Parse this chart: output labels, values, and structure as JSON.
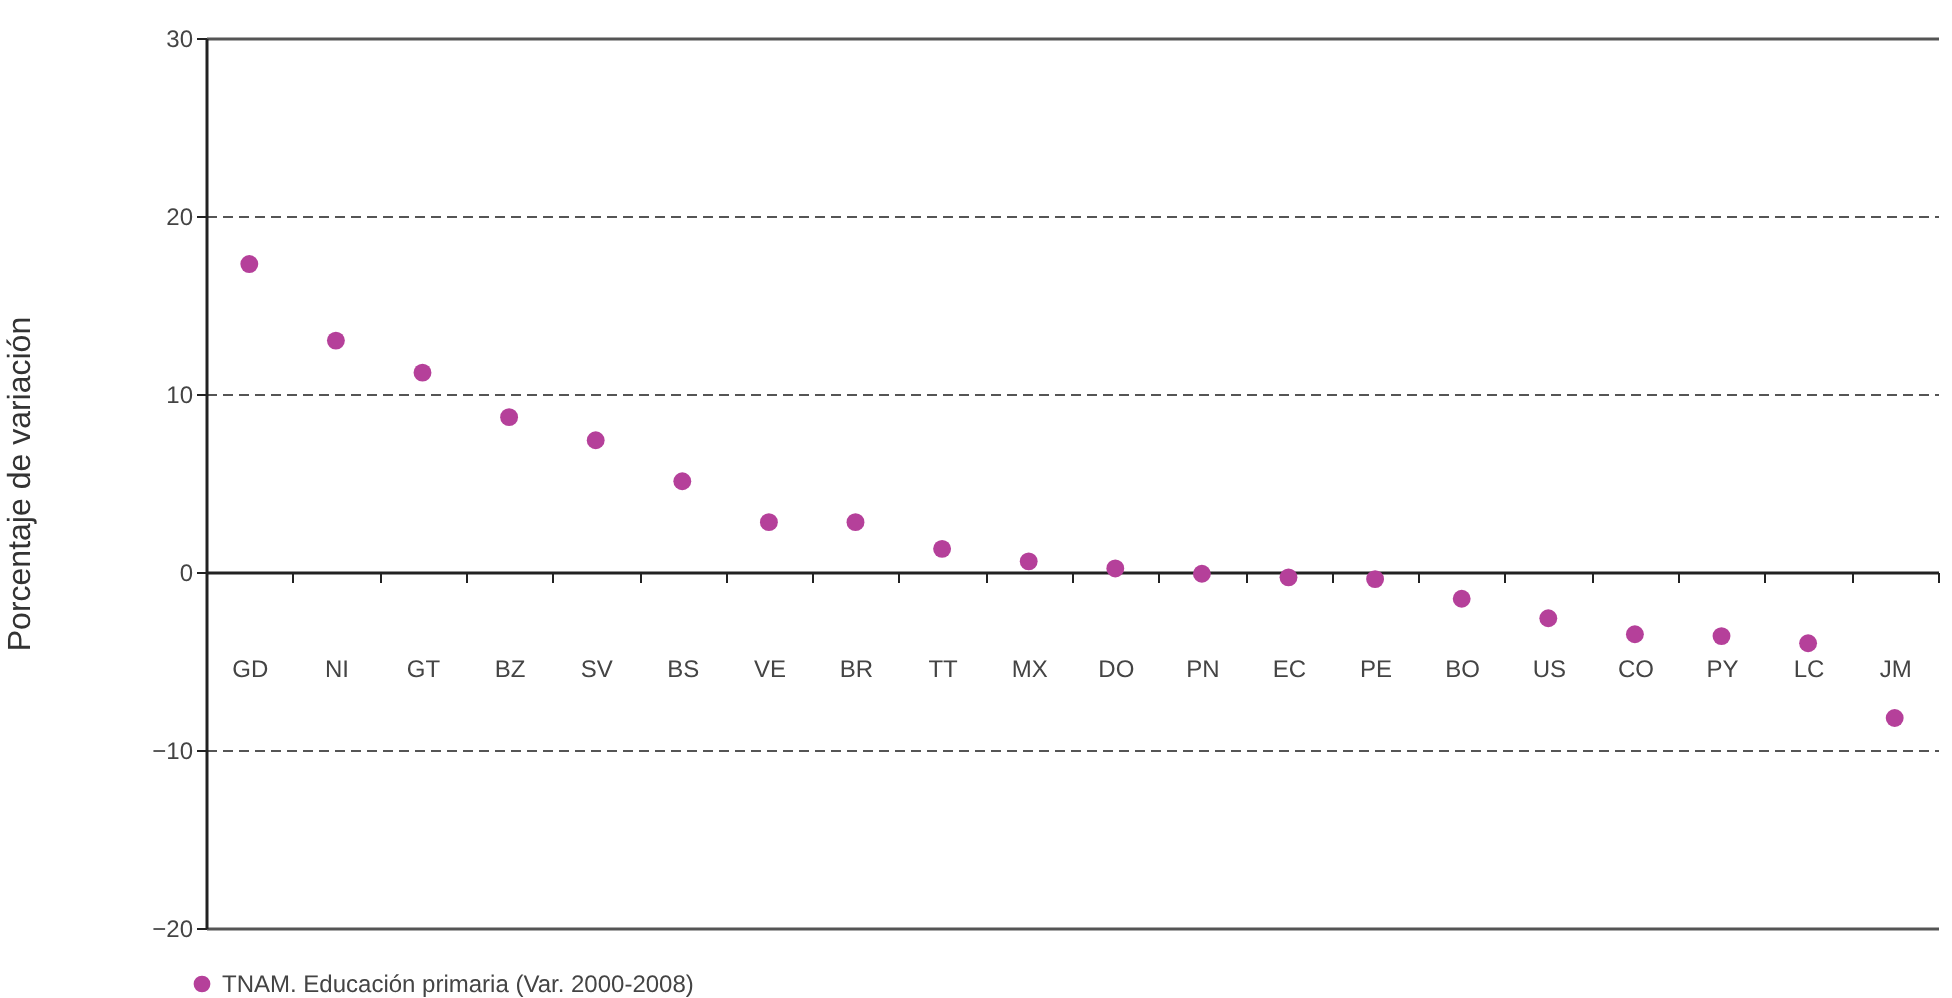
{
  "chart_data": {
    "type": "scatter",
    "ylabel": "Porcentaje de variación",
    "categories": [
      "GD",
      "NI",
      "GT",
      "BZ",
      "SV",
      "BS",
      "VE",
      "BR",
      "TT",
      "MX",
      "DO",
      "PN",
      "EC",
      "PE",
      "BO",
      "US",
      "CO",
      "PY",
      "LC",
      "JM"
    ],
    "series": [
      {
        "name": "TNAM. Educación primaria (Var. 2000-2008)",
        "color": "#b5409a",
        "values": [
          17.3,
          13.0,
          11.2,
          8.7,
          7.4,
          5.1,
          2.8,
          2.8,
          1.3,
          0.6,
          0.2,
          -0.1,
          -0.3,
          -0.4,
          -1.5,
          -2.6,
          -3.5,
          -3.6,
          -4.0,
          -8.2
        ]
      }
    ],
    "ylim": [
      -20,
      30
    ],
    "yticks": [
      -20,
      -10,
      0,
      10,
      20,
      30
    ],
    "grid": "y",
    "legend": "bottom left",
    "marker": "circle"
  }
}
